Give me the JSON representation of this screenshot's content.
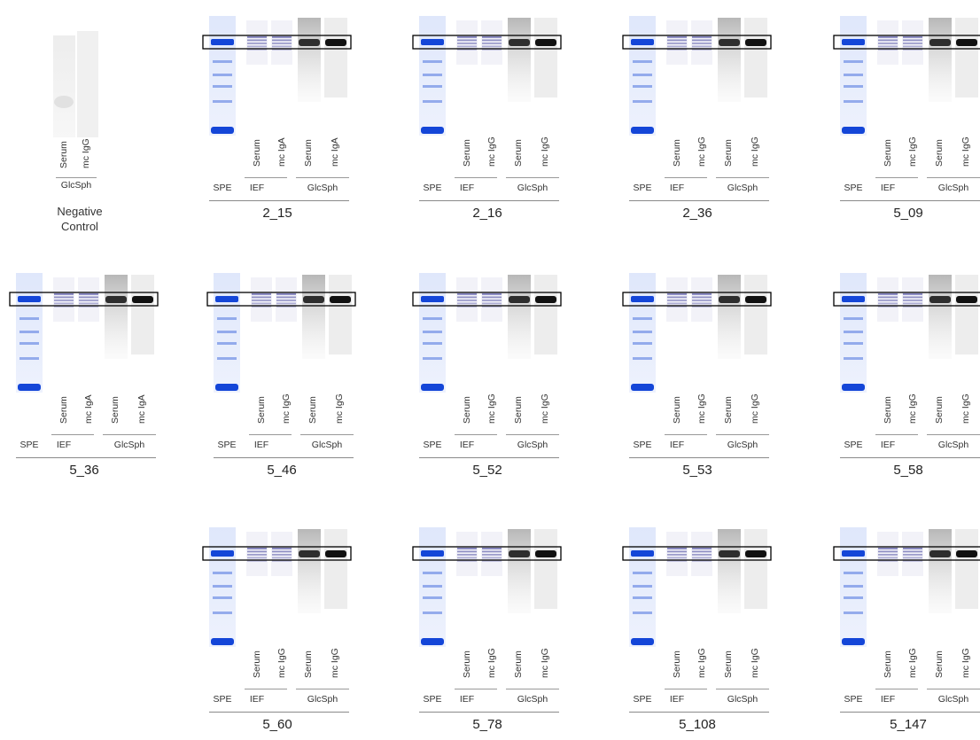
{
  "labels": {
    "serum": "Serum",
    "mc_igg": "mc IgG",
    "mc_iga": "mc IgA",
    "spe": "SPE",
    "ief": "IEF",
    "glcsph": "GlcSph"
  },
  "negative_control": {
    "title_line1": "Negative",
    "title_line2": "Control",
    "lanes": [
      "Serum",
      "mc IgG"
    ],
    "group": "GlcSph"
  },
  "colors": {
    "spe_blue": "#1446d8",
    "ief_purple": "#5a5aa8",
    "dark_band": "#111111",
    "box": "#000000"
  },
  "panels": [
    {
      "id": "2_15",
      "mc": "mc IgA"
    },
    {
      "id": "2_16",
      "mc": "mc IgG"
    },
    {
      "id": "2_36",
      "mc": "mc IgG"
    },
    {
      "id": "5_09",
      "mc": "mc IgG"
    },
    {
      "id": "5_36",
      "mc": "mc IgA"
    },
    {
      "id": "5_46",
      "mc": "mc IgG"
    },
    {
      "id": "5_52",
      "mc": "mc IgG"
    },
    {
      "id": "5_53",
      "mc": "mc IgG"
    },
    {
      "id": "5_58",
      "mc": "mc IgG"
    },
    {
      "id": "5_60",
      "mc": "mc IgG"
    },
    {
      "id": "5_78",
      "mc": "mc IgG"
    },
    {
      "id": "5_108",
      "mc": "mc IgG"
    },
    {
      "id": "5_147",
      "mc": "mc IgG"
    }
  ]
}
